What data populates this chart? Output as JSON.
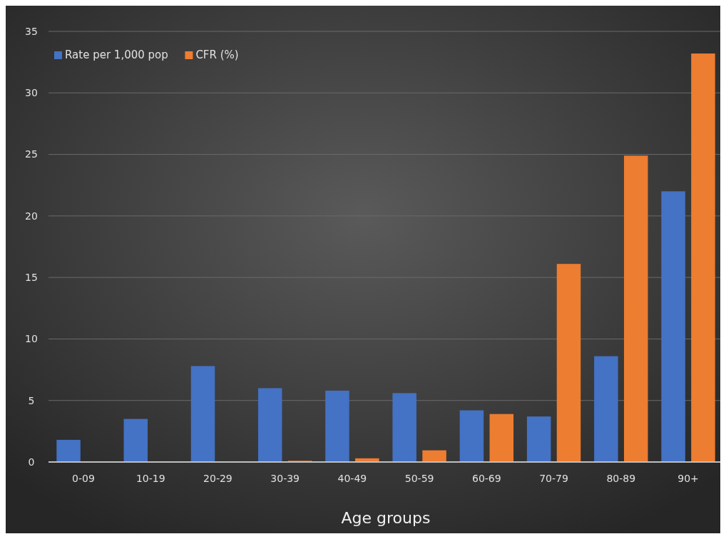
{
  "chart_data": {
    "type": "bar",
    "xlabel": "Age groups",
    "categories": [
      "0-09",
      "10-19",
      "20-29",
      "30-39",
      "40-49",
      "50-59",
      "60-69",
      "70-79",
      "80-89",
      "90+"
    ],
    "series": [
      {
        "name": "Rate per 1,000 pop",
        "color": "#4472c4",
        "values": [
          1.8,
          3.5,
          7.8,
          6.0,
          5.8,
          5.6,
          4.2,
          3.7,
          8.6,
          22.0
        ]
      },
      {
        "name": "CFR (%)",
        "color": "#ed7d31",
        "values": [
          0,
          0,
          0.05,
          0.1,
          0.3,
          0.95,
          3.9,
          16.1,
          24.9,
          33.2
        ]
      }
    ],
    "ylim": [
      0,
      35
    ],
    "yticks": [
      0,
      5,
      10,
      15,
      20,
      25,
      30,
      35
    ],
    "grid": "y",
    "legend": "top left"
  }
}
